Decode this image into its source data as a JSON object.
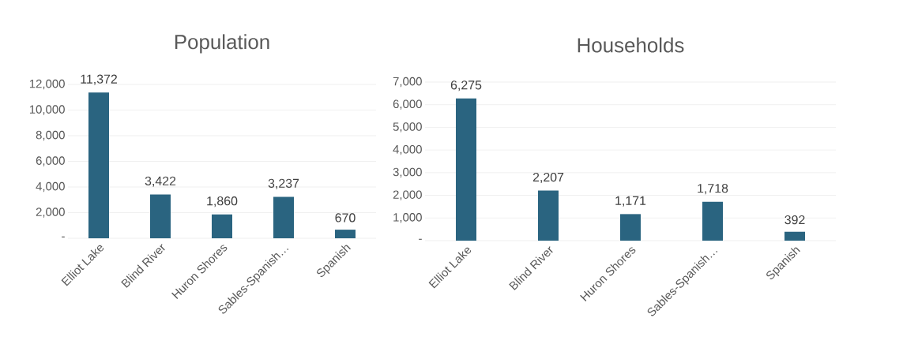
{
  "chart_data": [
    {
      "type": "bar",
      "title": "Population",
      "categories": [
        "Elliot Lake",
        "Blind River",
        "Huron Shores",
        "Sables-Spanish…",
        "Spanish"
      ],
      "values": [
        11372,
        3422,
        1860,
        3237,
        670
      ],
      "value_labels": [
        "11,372",
        "3,422",
        "1,860",
        "3,237",
        "670"
      ],
      "color": "#2a6480",
      "ylim": [
        0,
        12000
      ],
      "yticks": [
        {
          "value": 0,
          "label": "-"
        },
        {
          "value": 2000,
          "label": "2,000"
        },
        {
          "value": 4000,
          "label": "4,000"
        },
        {
          "value": 6000,
          "label": "6,000"
        },
        {
          "value": 8000,
          "label": "8,000"
        },
        {
          "value": 10000,
          "label": "10,000"
        },
        {
          "value": 12000,
          "label": "12,000"
        }
      ],
      "grid": "y"
    },
    {
      "type": "bar",
      "title": "Households",
      "categories": [
        "Elliot Lake",
        "Blind River",
        "Huron Shores",
        "Sables-Spanish…",
        "Spanish"
      ],
      "values": [
        6275,
        2207,
        1171,
        1718,
        392
      ],
      "value_labels": [
        "6,275",
        "2,207",
        "1,171",
        "1,718",
        "392"
      ],
      "color": "#2a6480",
      "ylim": [
        0,
        7000
      ],
      "yticks": [
        {
          "value": 0,
          "label": "-"
        },
        {
          "value": 1000,
          "label": "1,000"
        },
        {
          "value": 2000,
          "label": "2,000"
        },
        {
          "value": 3000,
          "label": "3,000"
        },
        {
          "value": 4000,
          "label": "4,000"
        },
        {
          "value": 5000,
          "label": "5,000"
        },
        {
          "value": 6000,
          "label": "6,000"
        },
        {
          "value": 7000,
          "label": "7,000"
        }
      ],
      "grid": "y"
    }
  ]
}
